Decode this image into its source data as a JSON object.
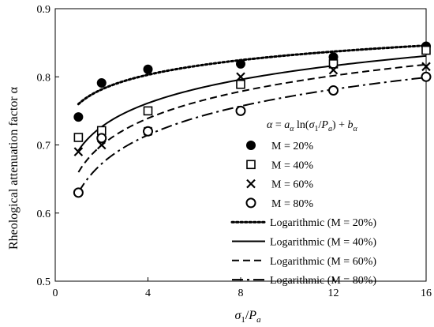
{
  "chart_data": {
    "type": "scatter",
    "xlabel": {
      "main": "σ",
      "sub": "1",
      "tail": "/",
      "italic2": "P",
      "sub2": "a"
    },
    "ylabel": "Rheological attenuation factor α",
    "xlim": [
      0,
      16
    ],
    "ylim": [
      0.5,
      0.9
    ],
    "xticks": [
      0,
      4,
      8,
      12,
      16
    ],
    "xtick_labels": [
      "0",
      "4",
      "8",
      "12",
      "16"
    ],
    "yticks": [
      0.5,
      0.6,
      0.7,
      0.8,
      0.9
    ],
    "ytick_labels": [
      "0.5",
      "0.6",
      "0.7",
      "0.8",
      "0.9"
    ],
    "grid": false,
    "legend_placement": "bottom-right",
    "equation": "α = aα ln(σ1/Pa) + bα",
    "series": [
      {
        "name": "M = 20%",
        "marker": "filled-circle",
        "x": [
          1,
          2,
          4,
          8,
          12,
          16
        ],
        "y": [
          0.741,
          0.791,
          0.811,
          0.819,
          0.829,
          0.845
        ]
      },
      {
        "name": "M = 40%",
        "marker": "open-square",
        "x": [
          1,
          2,
          4,
          8,
          12,
          16
        ],
        "y": [
          0.711,
          0.721,
          0.75,
          0.789,
          0.819,
          0.839
        ]
      },
      {
        "name": "M = 60%",
        "marker": "cross",
        "x": [
          1,
          2,
          4,
          8,
          12,
          16
        ],
        "y": [
          0.69,
          0.7,
          0.72,
          0.8,
          0.81,
          0.815
        ]
      },
      {
        "name": "M = 80%",
        "marker": "open-circle",
        "x": [
          1,
          2,
          4,
          8,
          12,
          16
        ],
        "y": [
          0.63,
          0.71,
          0.72,
          0.75,
          0.78,
          0.8
        ]
      }
    ],
    "fits": [
      {
        "name": "Logarithmic (M = 20%)",
        "style": "dotted",
        "a": 0.031,
        "b": 0.76
      },
      {
        "name": "Logarithmic (M = 40%)",
        "style": "solid",
        "a": 0.05,
        "b": 0.692
      },
      {
        "name": "Logarithmic (M = 60%)",
        "style": "dashed",
        "a": 0.057,
        "b": 0.66
      },
      {
        "name": "Logarithmic (M = 80%)",
        "style": "dash-dot",
        "a": 0.061,
        "b": 0.63
      }
    ]
  }
}
